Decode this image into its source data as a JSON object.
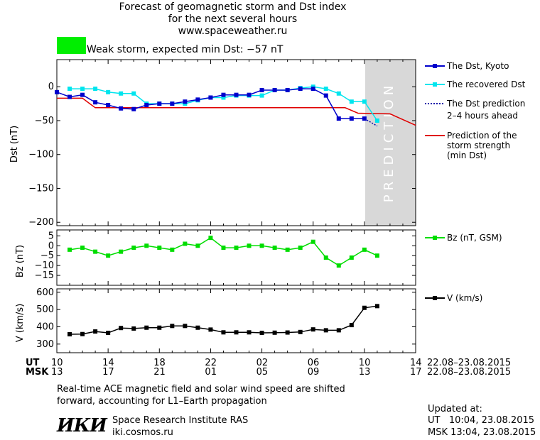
{
  "header": {
    "line1": "Forecast of geomagnetic storm and Dst index",
    "line2": "for the next several hours",
    "line3": "www.spaceweather.ru"
  },
  "alert": {
    "text": "Weak storm, expected min Dst: −57 nT",
    "color": "#00ee00"
  },
  "legend": {
    "dst_kyoto": "The Dst, Kyoto",
    "dst_recovered": "The recovered Dst",
    "dst_prediction_1": "The Dst prediction",
    "dst_prediction_2": "2–4 hours ahead",
    "strength_1": "Prediction of the",
    "strength_2": "storm strength",
    "strength_3": "(min Dst)",
    "bz": "Bz (nT, GSM)",
    "v": "V (km/s)"
  },
  "prediction_label": "PREDICTION",
  "axes": {
    "ut_label": "UT",
    "msk_label": "MSK",
    "ut_ticks": [
      "10",
      "14",
      "18",
      "22",
      "02",
      "06",
      "10",
      "14"
    ],
    "msk_ticks": [
      "13",
      "17",
      "21",
      "01",
      "05",
      "09",
      "13",
      "17"
    ],
    "date_range_ut": "22.08–23.08.2015",
    "date_range_msk": "22.08–23.08.2015"
  },
  "footer": {
    "note_line1": "Real-time ACE magnetic field and solar wind speed are shifted",
    "note_line2": "forward, accounting for L1–Earth propagation",
    "logo_text": "ИКИ",
    "institute": "Space Research Institute RAS",
    "website": "iki.cosmos.ru",
    "updated_label": "Updated at:",
    "updated_ut": "UT   10:04, 23.08.2015",
    "updated_msk": "MSK 13:04, 23.08.2015"
  },
  "colors": {
    "dst_kyoto": "#0000cc",
    "dst_recovered": "#00e5ee",
    "dst_prediction": "#0000aa",
    "strength": "#e00000",
    "bz": "#00dd00",
    "v": "#000000",
    "prediction_band": "#d8d8d8"
  },
  "chart_data": [
    {
      "type": "line",
      "ylabel": "Dst (nT)",
      "ylim": [
        -205,
        40
      ],
      "yticks": [
        0,
        -50,
        -100,
        -150,
        -200
      ],
      "x_unit": "hours since 10 UT 22.08.2015",
      "xlim": [
        0,
        28
      ],
      "prediction_start": 24,
      "series": [
        {
          "name": "The Dst, Kyoto",
          "x": [
            0,
            1,
            2,
            3,
            4,
            5,
            6,
            7,
            8,
            9,
            10,
            11,
            12,
            13,
            14,
            15,
            16,
            17,
            18,
            19,
            20,
            21,
            22,
            23,
            24
          ],
          "y": [
            -8,
            -15,
            -12,
            -23,
            -27,
            -32,
            -33,
            -27,
            -25,
            -25,
            -22,
            -19,
            -16,
            -12,
            -12,
            -12,
            -5,
            -5,
            -5,
            -3,
            -3,
            -13,
            -47,
            -47,
            -47
          ]
        },
        {
          "name": "The recovered Dst",
          "x": [
            1,
            2,
            3,
            4,
            5,
            6,
            7,
            8,
            9,
            10,
            11,
            12,
            13,
            14,
            15,
            16,
            17,
            18,
            19,
            20,
            21,
            22,
            23,
            24,
            25
          ],
          "y": [
            -3,
            -3,
            -3,
            -8,
            -10,
            -10,
            -25,
            -25,
            -25,
            -25,
            -20,
            -16,
            -16,
            -13,
            -13,
            -13,
            -5,
            -5,
            -2,
            0,
            -3,
            -10,
            -22,
            -22,
            -50
          ]
        },
        {
          "name": "The Dst prediction 2–4 hours ahead",
          "x": [
            24,
            25
          ],
          "y": [
            -47,
            -58
          ]
        },
        {
          "name": "Prediction of the storm strength (min Dst)",
          "x": [
            0,
            2,
            3,
            22.5,
            23.5,
            26,
            28
          ],
          "y": [
            -17,
            -17,
            -31,
            -31,
            -39,
            -40,
            -57
          ]
        }
      ]
    },
    {
      "type": "line",
      "ylabel": "Bz (nT)",
      "ylim": [
        -20,
        8
      ],
      "yticks": [
        5,
        0,
        -5,
        -10,
        -15
      ],
      "series": [
        {
          "name": "Bz (nT, GSM)",
          "x": [
            1,
            2,
            3,
            4,
            5,
            6,
            7,
            8,
            9,
            10,
            11,
            12,
            13,
            14,
            15,
            16,
            17,
            18,
            19,
            20,
            21,
            22,
            23,
            24,
            25
          ],
          "y": [
            -2,
            -1,
            -3,
            -5,
            -3,
            -1,
            0,
            -1,
            -2,
            1,
            0,
            4,
            -1,
            -1,
            0,
            0,
            -1,
            -2,
            -1,
            2,
            -6,
            -10,
            -6,
            -2,
            -5
          ]
        }
      ]
    },
    {
      "type": "line",
      "ylabel": "V (km/s)",
      "ylim": [
        250,
        620
      ],
      "yticks": [
        600,
        500,
        400,
        300
      ],
      "series": [
        {
          "name": "V (km/s)",
          "x": [
            1,
            2,
            3,
            4,
            5,
            6,
            7,
            8,
            9,
            10,
            11,
            12,
            13,
            14,
            15,
            16,
            17,
            18,
            19,
            20,
            21,
            22,
            23,
            24,
            25
          ],
          "y": [
            357,
            358,
            373,
            365,
            393,
            390,
            395,
            395,
            405,
            405,
            395,
            384,
            368,
            368,
            368,
            365,
            366,
            367,
            370,
            385,
            380,
            380,
            410,
            510,
            520
          ]
        }
      ]
    }
  ]
}
